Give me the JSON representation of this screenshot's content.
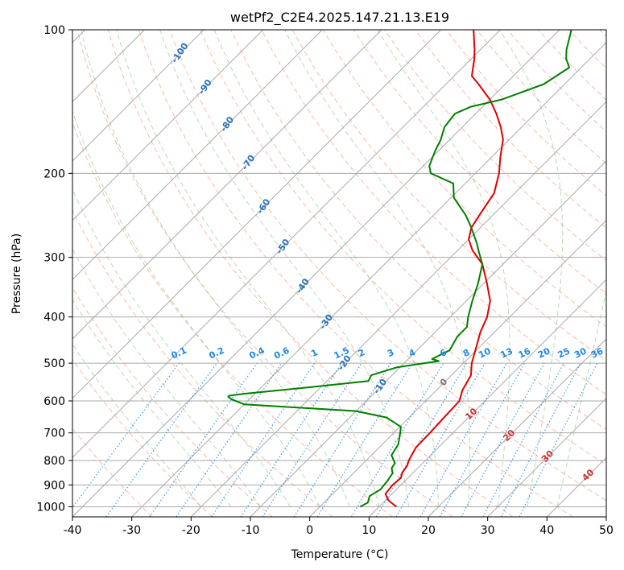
{
  "chart_data": {
    "type": "line",
    "title": "wetPf2_C2E4.2025.147.21.13.E19",
    "xlabel": "Temperature (°C)",
    "ylabel": "Pressure (hPa)",
    "xlim": [
      -40,
      50
    ],
    "ylim": [
      1050,
      100
    ],
    "y_scale": "log",
    "x_ticks": [
      "-40",
      "-30",
      "-20",
      "-10",
      "0",
      "10",
      "20",
      "30",
      "40",
      "50"
    ],
    "y_ticks": [
      "100",
      "200",
      "300",
      "400",
      "500",
      "600",
      "700",
      "800",
      "900",
      "1000"
    ],
    "grid": true,
    "colors": {
      "temperature": "#e00000",
      "dewpoint": "#008000",
      "isotherm_labels": "#2a73b8",
      "mixing_ratio": "#1e88e5",
      "dry_adiabats": "#fa8060",
      "moist_adiabats": "#60b060",
      "grid": "#aaaaaa"
    },
    "isotherm_labels": [
      "-100",
      "-90",
      "-80",
      "-70",
      "-60",
      "-50",
      "-40",
      "-30",
      "-20",
      "-10"
    ],
    "mixing_ratio_labels": [
      "0.1",
      "0.2",
      "0.4",
      "0.6",
      "1",
      "1.5",
      "2",
      "3",
      "4",
      "6",
      "8",
      "10",
      "13",
      "16",
      "20",
      "25",
      "30",
      "36"
    ],
    "mixing_ratio_values": [
      0.1,
      0.2,
      0.4,
      0.6,
      1,
      1.5,
      2,
      3,
      4,
      6,
      8,
      10,
      13,
      16,
      20,
      25,
      30,
      36
    ],
    "marker_labels": [
      "0",
      "10",
      "20",
      "30",
      "40"
    ],
    "series": [
      {
        "pressure": [
          1000,
          970,
          940,
          900,
          870,
          850,
          820,
          800,
          780,
          750,
          700,
          650,
          600,
          570,
          530,
          500,
          460,
          430,
          400,
          370,
          340,
          310,
          290,
          275,
          260,
          240,
          220,
          200,
          185,
          170,
          160,
          150,
          140,
          130,
          125,
          115,
          110,
          100
        ],
        "values": [
          12.9,
          10.5,
          8.9,
          8.6,
          8.8,
          8.2,
          7.8,
          7.2,
          6.8,
          6.2,
          6.1,
          5.9,
          5.7,
          4.4,
          3.3,
          1.4,
          -0.7,
          -2.4,
          -3.8,
          -6.0,
          -9.5,
          -13.5,
          -17.5,
          -20.0,
          -21.5,
          -22.5,
          -23.5,
          -26.0,
          -28.5,
          -31.0,
          -33.5,
          -36.5,
          -40.0,
          -44.5,
          -47.0,
          -49.5,
          -51.0,
          -54.5
        ]
      },
      {
        "pressure": [
          1000,
          980,
          950,
          920,
          880,
          850,
          830,
          810,
          780,
          740,
          700,
          680,
          650,
          630,
          610,
          595,
          588,
          585,
          580,
          560,
          545,
          530,
          510,
          495,
          490,
          470,
          440,
          420,
          400,
          370,
          340,
          310,
          290,
          280,
          260,
          245,
          225,
          210,
          200,
          193,
          180,
          170,
          160,
          150,
          145,
          140,
          130,
          120,
          115,
          110,
          100
        ],
        "values": [
          6.8,
          7.4,
          6.6,
          7.3,
          7.0,
          6.6,
          5.6,
          5.3,
          3.4,
          2.7,
          1.1,
          0.2,
          -3.8,
          -10.0,
          -30.0,
          -33.0,
          -34.0,
          -34.0,
          -32.0,
          -21.0,
          -13.0,
          -13.5,
          -10.5,
          -4.5,
          -6.0,
          -4.5,
          -5.5,
          -5.5,
          -7.0,
          -9.0,
          -11.0,
          -13.5,
          -16.5,
          -18.0,
          -21.5,
          -24.5,
          -29.5,
          -32.0,
          -37.5,
          -39.0,
          -40.5,
          -41.5,
          -43.0,
          -43.5,
          -42.0,
          -38.0,
          -33.5,
          -32.0,
          -34.0,
          -35.5,
          -38.0
        ]
      }
    ]
  }
}
